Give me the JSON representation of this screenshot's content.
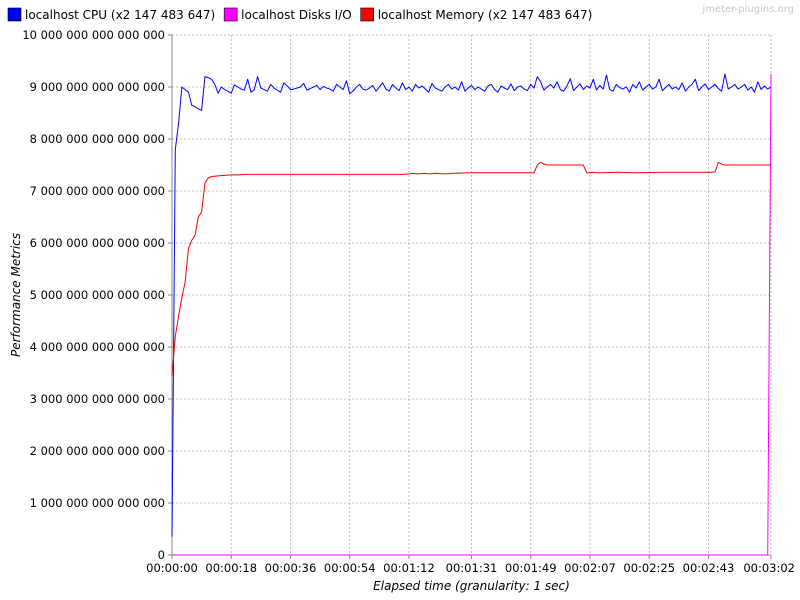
{
  "watermark": "jmeter-plugins.org",
  "chart_data": {
    "type": "line",
    "xlabel": "Elapsed time (granularity: 1 sec)",
    "ylabel": "Performance Metrics",
    "xlim": [
      0,
      182
    ],
    "ylim": [
      0,
      10000000000000000
    ],
    "x_ticks": [
      {
        "value": 0,
        "label": "00:00:00"
      },
      {
        "value": 18,
        "label": "00:00:18"
      },
      {
        "value": 36,
        "label": "00:00:36"
      },
      {
        "value": 54,
        "label": "00:00:54"
      },
      {
        "value": 72,
        "label": "00:01:12"
      },
      {
        "value": 91,
        "label": "00:01:31"
      },
      {
        "value": 109,
        "label": "00:01:49"
      },
      {
        "value": 127,
        "label": "00:02:07"
      },
      {
        "value": 145,
        "label": "00:02:25"
      },
      {
        "value": 163,
        "label": "00:02:43"
      },
      {
        "value": 182,
        "label": "00:03:02"
      }
    ],
    "y_ticks": [
      {
        "value": 0,
        "label": "0"
      },
      {
        "value": 1000000000000000,
        "label": "1 000 000 000 000 000"
      },
      {
        "value": 2000000000000000,
        "label": "2 000 000 000 000 000"
      },
      {
        "value": 3000000000000000,
        "label": "3 000 000 000 000 000"
      },
      {
        "value": 4000000000000000,
        "label": "4 000 000 000 000 000"
      },
      {
        "value": 5000000000000000,
        "label": "5 000 000 000 000 000"
      },
      {
        "value": 6000000000000000,
        "label": "6 000 000 000 000 000"
      },
      {
        "value": 7000000000000000,
        "label": "7 000 000 000 000 000"
      },
      {
        "value": 8000000000000000,
        "label": "8 000 000 000 000 000"
      },
      {
        "value": 9000000000000000,
        "label": "9 000 000 000 000 000"
      },
      {
        "value": 10000000000000000,
        "label": "10 000 000 000 000 000"
      }
    ],
    "grid": true,
    "legend_position": "top-left",
    "series": [
      {
        "name": "localhost CPU (x2 147 483 647)",
        "color": "#0000ff",
        "x": [
          0,
          1,
          2,
          3,
          4,
          5,
          6,
          7,
          8,
          9,
          10,
          11,
          12,
          13,
          14,
          15,
          16,
          17,
          18,
          19,
          20,
          21,
          22,
          23,
          24,
          25,
          26,
          27,
          28,
          29,
          30,
          31,
          32,
          33,
          34,
          35,
          36,
          37,
          38,
          39,
          40,
          41,
          42,
          43,
          44,
          45,
          46,
          47,
          48,
          49,
          50,
          51,
          52,
          53,
          54,
          55,
          56,
          57,
          58,
          59,
          60,
          61,
          62,
          63,
          64,
          65,
          66,
          67,
          68,
          69,
          70,
          71,
          72,
          73,
          74,
          75,
          76,
          77,
          78,
          79,
          80,
          81,
          82,
          83,
          84,
          85,
          86,
          87,
          88,
          89,
          90,
          91,
          92,
          93,
          94,
          95,
          96,
          97,
          98,
          99,
          100,
          101,
          102,
          103,
          104,
          105,
          106,
          107,
          108,
          109,
          110,
          111,
          112,
          113,
          114,
          115,
          116,
          117,
          118,
          119,
          120,
          121,
          122,
          123,
          124,
          125,
          126,
          127,
          128,
          129,
          130,
          131,
          132,
          133,
          134,
          135,
          136,
          137,
          138,
          139,
          140,
          141,
          142,
          143,
          144,
          145,
          146,
          147,
          148,
          149,
          150,
          151,
          152,
          153,
          154,
          155,
          156,
          157,
          158,
          159,
          160,
          161,
          162,
          163,
          164,
          165,
          166,
          167,
          168,
          169,
          170,
          171,
          172,
          173,
          174,
          175,
          176,
          177,
          178,
          179,
          180,
          181,
          182
        ],
        "values": [
          350000000000000,
          7800000000000000,
          8300000000000000,
          9000000000000000,
          8950000000000000,
          8900000000000000,
          8650000000000000,
          8620000000000000,
          8580000000000000,
          8550000000000000,
          9200000000000000,
          9180000000000000,
          9150000000000000,
          9050000000000000,
          8880000000000000,
          9000000000000000,
          8950000000000000,
          8920000000000000,
          8880000000000000,
          9040000000000000,
          9000000000000000,
          8960000000000000,
          8940000000000000,
          9150000000000000,
          8900000000000000,
          8950000000000000,
          9200000000000000,
          8980000000000000,
          8950000000000000,
          8920000000000000,
          9050000000000000,
          8980000000000000,
          8940000000000000,
          8900000000000000,
          9080000000000000,
          9020000000000000,
          8950000000000000,
          8960000000000000,
          8980000000000000,
          9000000000000000,
          9070000000000000,
          8940000000000000,
          8970000000000000,
          9000000000000000,
          9030000000000000,
          8950000000000000,
          9010000000000000,
          8980000000000000,
          8960000000000000,
          8920000000000000,
          9050000000000000,
          9000000000000000,
          8950000000000000,
          9120000000000000,
          8870000000000000,
          8920000000000000,
          9000000000000000,
          9050000000000000,
          8960000000000000,
          8940000000000000,
          8980000000000000,
          9030000000000000,
          8920000000000000,
          9000000000000000,
          9080000000000000,
          8960000000000000,
          8920000000000000,
          9050000000000000,
          8980000000000000,
          8930000000000000,
          9080000000000000,
          8950000000000000,
          9000000000000000,
          8920000000000000,
          9050000000000000,
          8980000000000000,
          9020000000000000,
          8960000000000000,
          8900000000000000,
          9070000000000000,
          8980000000000000,
          8950000000000000,
          8920000000000000,
          9000000000000000,
          9050000000000000,
          8960000000000000,
          9000000000000000,
          8940000000000000,
          9100000000000000,
          8920000000000000,
          8980000000000000,
          9030000000000000,
          8950000000000000,
          9000000000000000,
          8960000000000000,
          8920000000000000,
          9020000000000000,
          9050000000000000,
          8950000000000000,
          8900000000000000,
          9020000000000000,
          8980000000000000,
          8950000000000000,
          9060000000000000,
          8930000000000000,
          9000000000000000,
          9020000000000000,
          8960000000000000,
          8930000000000000,
          9050000000000000,
          8980000000000000,
          9200000000000000,
          9100000000000000,
          8940000000000000,
          9000000000000000,
          9050000000000000,
          8980000000000000,
          9100000000000000,
          8950000000000000,
          8920000000000000,
          9020000000000000,
          9160000000000000,
          8930000000000000,
          9000000000000000,
          9060000000000000,
          8950000000000000,
          9020000000000000,
          8980000000000000,
          9150000000000000,
          8940000000000000,
          9030000000000000,
          8960000000000000,
          9230000000000000,
          8950000000000000,
          8920000000000000,
          9050000000000000,
          8990000000000000,
          8960000000000000,
          9000000000000000,
          8900000000000000,
          9050000000000000,
          8980000000000000,
          9100000000000000,
          8940000000000000,
          9000000000000000,
          9050000000000000,
          8960000000000000,
          9000000000000000,
          9150000000000000,
          8930000000000000,
          8990000000000000,
          9050000000000000,
          8960000000000000,
          9000000000000000,
          8950000000000000,
          9080000000000000,
          8920000000000000,
          9000000000000000,
          9050000000000000,
          9150000000000000,
          8930000000000000,
          9000000000000000,
          9060000000000000,
          8950000000000000,
          9000000000000000,
          9050000000000000,
          8970000000000000,
          8920000000000000,
          9250000000000000,
          8960000000000000,
          9000000000000000,
          9050000000000000,
          8960000000000000,
          9000000000000000,
          9050000000000000,
          8940000000000000,
          9000000000000000,
          8900000000000000,
          9100000000000000,
          8950000000000000,
          9020000000000000,
          8960000000000000,
          9000000000000000
        ]
      },
      {
        "name": "localhost Disks I/O",
        "color": "#ff00ff",
        "x": [
          0,
          10,
          20,
          40,
          60,
          80,
          100,
          120,
          140,
          160,
          180,
          181,
          182
        ],
        "values": [
          0,
          0,
          0,
          0,
          0,
          0,
          0,
          0,
          0,
          0,
          0,
          0,
          9250000000000000
        ]
      },
      {
        "name": "localhost Memory (x2 147 483 647)",
        "color": "#ff0000",
        "x": [
          0,
          1,
          2,
          3,
          4,
          5,
          6,
          7,
          8,
          9,
          10,
          11,
          12,
          14,
          16,
          18,
          20,
          22,
          25,
          30,
          40,
          50,
          60,
          70,
          72,
          73,
          75,
          77,
          78,
          80,
          83,
          85,
          90,
          100,
          110,
          111,
          112,
          113,
          114,
          120,
          125,
          126,
          127,
          128,
          129,
          131,
          135,
          140,
          150,
          160,
          164,
          165,
          166,
          167,
          168,
          170,
          182
        ],
        "values": [
          3450000000000000,
          4200000000000000,
          4600000000000000,
          4950000000000000,
          5250000000000000,
          5900000000000000,
          6050000000000000,
          6150000000000000,
          6500000000000000,
          6600000000000000,
          7150000000000000,
          7250000000000000,
          7280000000000000,
          7290000000000000,
          7300000000000000,
          7310000000000000,
          7310000000000000,
          7320000000000000,
          7320000000000000,
          7320000000000000,
          7320000000000000,
          7320000000000000,
          7320000000000000,
          7320000000000000,
          7330000000000000,
          7340000000000000,
          7330000000000000,
          7340000000000000,
          7330000000000000,
          7340000000000000,
          7330000000000000,
          7340000000000000,
          7350000000000000,
          7350000000000000,
          7350000000000000,
          7500000000000000,
          7550000000000000,
          7520000000000000,
          7500000000000000,
          7500000000000000,
          7500000000000000,
          7350000000000000,
          7350000000000000,
          7360000000000000,
          7350000000000000,
          7350000000000000,
          7360000000000000,
          7350000000000000,
          7360000000000000,
          7360000000000000,
          7360000000000000,
          7370000000000000,
          7550000000000000,
          7520000000000000,
          7500000000000000,
          7500000000000000,
          7500000000000000
        ]
      }
    ]
  }
}
